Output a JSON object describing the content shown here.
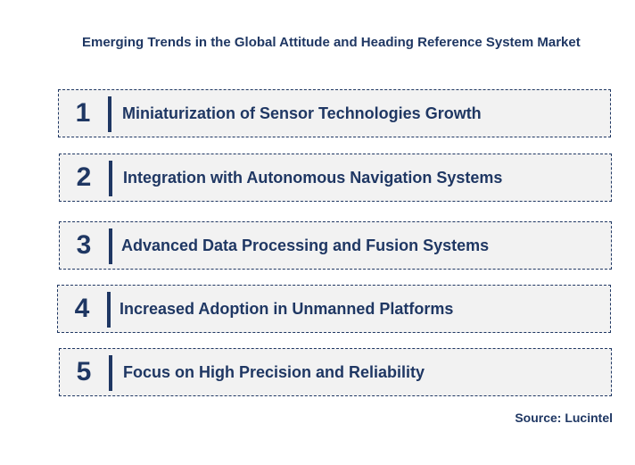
{
  "title": "Emerging Trends in the Global Attitude and Heading Reference System Market",
  "trends": [
    {
      "number": "1",
      "label": "Miniaturization of Sensor Technologies Growth"
    },
    {
      "number": "2",
      "label": "Integration with Autonomous Navigation Systems"
    },
    {
      "number": "3",
      "label": "Advanced Data Processing and Fusion Systems"
    },
    {
      "number": "4",
      "label": "Increased Adoption in Unmanned Platforms"
    },
    {
      "number": "5",
      "label": "Focus on High Precision and Reliability"
    }
  ],
  "source": "Source: Lucintel",
  "colors": {
    "primary": "#1f3763",
    "box_fill": "#f2f2f2"
  }
}
